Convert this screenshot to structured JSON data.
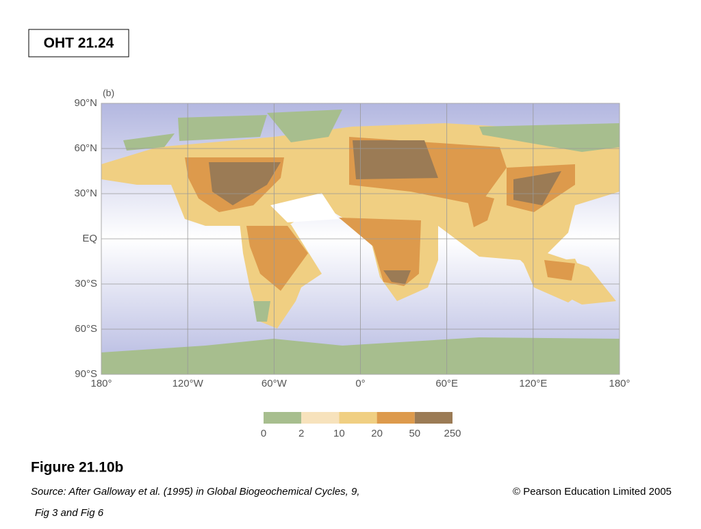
{
  "header": {
    "title": "OHT 21.24"
  },
  "map": {
    "panel_label": "(b)",
    "latitudes": [
      {
        "value": 90,
        "label": "90°N"
      },
      {
        "value": 60,
        "label": "60°N"
      },
      {
        "value": 30,
        "label": "30°N"
      },
      {
        "value": 0,
        "label": "EQ"
      },
      {
        "value": -30,
        "label": "30°S"
      },
      {
        "value": -60,
        "label": "60°S"
      },
      {
        "value": -90,
        "label": "90°S"
      }
    ],
    "longitudes": [
      {
        "value": -180,
        "label": "180°"
      },
      {
        "value": -120,
        "label": "120°W"
      },
      {
        "value": -60,
        "label": "60°W"
      },
      {
        "value": 0,
        "label": "0°"
      },
      {
        "value": 60,
        "label": "60°E"
      },
      {
        "value": 120,
        "label": "120°E"
      },
      {
        "value": 180,
        "label": "180°"
      }
    ],
    "legend": {
      "breaks": [
        0,
        2,
        10,
        20,
        50,
        250
      ],
      "colors": [
        "#a7be8e",
        "#f7e2bc",
        "#f0cf82",
        "#dd9a4c",
        "#9b7b55"
      ]
    }
  },
  "caption": {
    "title": "Figure 21.10b",
    "source": "Source:  After Galloway et al. (1995) in Global Biogeochemical Cycles, 9,",
    "source_cont": "Fig 3 and Fig 6",
    "copyright": "© Pearson Education Limited 2005"
  }
}
